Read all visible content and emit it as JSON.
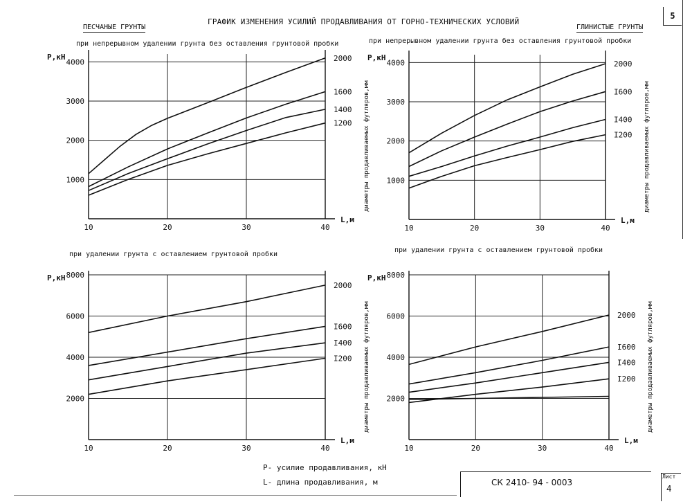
{
  "document": {
    "title": "ГРАФИК ИЗМЕНЕНИЯ УСИЛИЙ ПРОДАВЛИВАНИЯ ОТ ГОРНО-ТЕХНИЧЕСКИХ УСЛОВИЙ",
    "left_heading": "ПЕСЧАНЫЕ ГРУНТЫ",
    "right_heading": "ГЛИНИСТЫЕ ГРУНТЫ",
    "page_number": "5",
    "legend_p": "Р- усилие продавливания, кН",
    "legend_l": "L- длина продавливания, м",
    "stamp_code": "СК    2410- 94 - 0003",
    "sheet_label": "Лист",
    "sheet_number": "4"
  },
  "chart_data": [
    {
      "type": "line",
      "subtitle": "при непрерывном удалении грунта без оставления грунтовой пробки",
      "ylabel": "Р,кН",
      "xlabel": "L,м",
      "side_label": "диаметры продавливаемых футляров,мм",
      "xlim": [
        10,
        40
      ],
      "ylim": [
        0,
        4200
      ],
      "x_ticks": [
        10,
        20,
        30,
        40
      ],
      "x_tick_labels": [
        "10",
        "20",
        "30",
        "40"
      ],
      "y_ticks": [
        1000,
        2000,
        3000,
        4000
      ],
      "y_tick_labels": [
        "1000",
        "2000",
        "3000",
        "4000"
      ],
      "grid": true,
      "series": [
        {
          "name": "2000",
          "x": [
            10,
            12,
            14,
            16,
            18,
            20,
            25,
            30,
            35,
            40
          ],
          "y": [
            1150,
            1500,
            1850,
            2150,
            2380,
            2560,
            2950,
            3350,
            3730,
            4100
          ]
        },
        {
          "name": "1600",
          "x": [
            10,
            15,
            20,
            25,
            30,
            35,
            40
          ],
          "y": [
            820,
            1320,
            1780,
            2180,
            2570,
            2920,
            3240
          ]
        },
        {
          "name": "1400",
          "x": [
            10,
            15,
            20,
            25,
            30,
            35,
            40
          ],
          "y": [
            720,
            1150,
            1530,
            1900,
            2250,
            2580,
            2790
          ]
        },
        {
          "name": "1200",
          "x": [
            10,
            15,
            20,
            25,
            30,
            35,
            40
          ],
          "y": [
            600,
            1000,
            1360,
            1650,
            1920,
            2190,
            2440
          ]
        }
      ]
    },
    {
      "type": "line",
      "subtitle": "при непрерывном удалении грунта без оставления грунтовой пробки",
      "ylabel": "Р,кН",
      "xlabel": "L,м",
      "side_label": "диаметры продавливаемых футляров,мм",
      "xlim": [
        10,
        40
      ],
      "ylim": [
        0,
        4200
      ],
      "x_ticks": [
        10,
        20,
        30,
        40
      ],
      "x_tick_labels": [
        "10",
        "20",
        "30",
        "40"
      ],
      "y_ticks": [
        1000,
        2000,
        3000,
        4000
      ],
      "y_tick_labels": [
        "1000",
        "2000",
        "3000",
        "4000"
      ],
      "grid": true,
      "series": [
        {
          "name": "2000",
          "x": [
            10,
            15,
            20,
            25,
            30,
            35,
            40
          ],
          "y": [
            1700,
            2200,
            2650,
            3050,
            3380,
            3700,
            3970
          ]
        },
        {
          "name": "I600",
          "x": [
            10,
            15,
            20,
            25,
            30,
            35,
            40
          ],
          "y": [
            1350,
            1750,
            2100,
            2430,
            2750,
            3020,
            3260
          ]
        },
        {
          "name": "I400",
          "x": [
            10,
            15,
            20,
            25,
            30,
            35,
            40
          ],
          "y": [
            1100,
            1350,
            1620,
            1870,
            2100,
            2340,
            2550
          ]
        },
        {
          "name": "I200",
          "x": [
            10,
            15,
            20,
            25,
            30,
            35,
            40
          ],
          "y": [
            800,
            1100,
            1370,
            1580,
            1780,
            1990,
            2160
          ]
        }
      ]
    },
    {
      "type": "line",
      "subtitle": "при удалении грунта с оставлением грунтовой пробки",
      "ylabel": "Р,кН",
      "xlabel": "L,м",
      "side_label": "диаметры продавливаемых футляров,мм",
      "xlim": [
        10,
        40
      ],
      "ylim": [
        0,
        8000
      ],
      "x_ticks": [
        10,
        20,
        30,
        40
      ],
      "x_tick_labels": [
        "10",
        "20",
        "30",
        "40"
      ],
      "y_ticks": [
        2000,
        4000,
        6000,
        8000
      ],
      "y_tick_labels": [
        "2000",
        "4000",
        "6000",
        "8000"
      ],
      "grid": true,
      "series": [
        {
          "name": "2000",
          "x": [
            10,
            20,
            30,
            40
          ],
          "y": [
            5200,
            6000,
            6700,
            7500
          ]
        },
        {
          "name": "I600",
          "x": [
            10,
            20,
            30,
            40
          ],
          "y": [
            3600,
            4250,
            4900,
            5500
          ]
        },
        {
          "name": "I400",
          "x": [
            10,
            20,
            30,
            40
          ],
          "y": [
            2900,
            3550,
            4200,
            4700
          ]
        },
        {
          "name": "I200",
          "x": [
            10,
            20,
            30,
            40
          ],
          "y": [
            2200,
            2850,
            3400,
            3950
          ]
        }
      ]
    },
    {
      "type": "line",
      "subtitle": "при удалении грунта с оставлением грунтовой пробки",
      "ylabel": "Р,кН",
      "xlabel": "L,м",
      "side_label": "диаметры продавливаемых футляров,мм",
      "xlim": [
        10,
        40
      ],
      "ylim": [
        0,
        8000
      ],
      "x_ticks": [
        10,
        20,
        30,
        40
      ],
      "x_tick_labels": [
        "10",
        "20",
        "30",
        "40"
      ],
      "y_ticks": [
        2000,
        4000,
        6000,
        8000
      ],
      "y_tick_labels": [
        "2000",
        "4000",
        "6000",
        "8000"
      ],
      "grid": true,
      "series": [
        {
          "name": "2000",
          "x": [
            10,
            20,
            30,
            40
          ],
          "y": [
            3650,
            4500,
            5250,
            6050
          ]
        },
        {
          "name": "I600",
          "x": [
            10,
            20,
            30,
            40
          ],
          "y": [
            2700,
            3250,
            3850,
            4500
          ]
        },
        {
          "name": "I400",
          "x": [
            10,
            20,
            30,
            40
          ],
          "y": [
            2300,
            2750,
            3250,
            3750
          ]
        },
        {
          "name": "I200",
          "x": [
            10,
            20,
            30,
            40
          ],
          "y": [
            1800,
            2200,
            2550,
            2950
          ]
        },
        {
          "name": "",
          "x": [
            10,
            20,
            30,
            40
          ],
          "y": [
            1950,
            2000,
            2050,
            2100
          ]
        }
      ]
    }
  ]
}
